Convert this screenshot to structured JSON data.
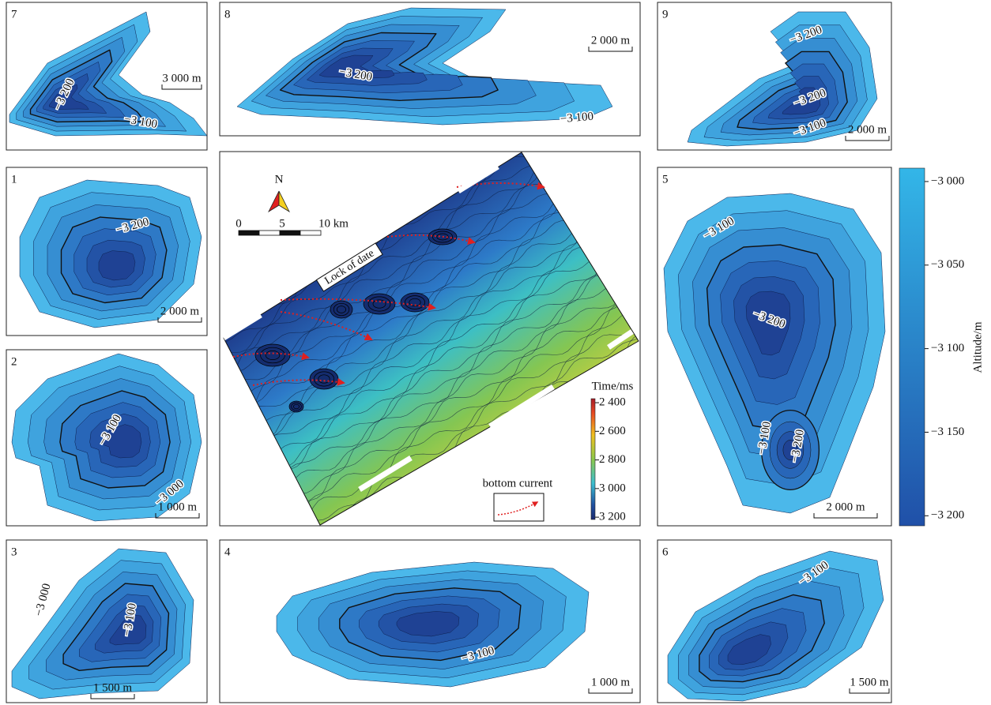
{
  "panels": [
    {
      "id": "7",
      "scale": "3 000 m",
      "labels": [
        "−3 200",
        "−3 100"
      ]
    },
    {
      "id": "8",
      "scale": "2 000 m",
      "labels": [
        "−3 200",
        "−3 100"
      ]
    },
    {
      "id": "9",
      "scale": "2 000 m",
      "labels": [
        "−3 200",
        "−3 200",
        "−3 100"
      ]
    },
    {
      "id": "1",
      "scale": "2 000 m",
      "labels": [
        "−3 200"
      ]
    },
    {
      "id": "2",
      "scale": "1 000 m",
      "labels": [
        "−3 100",
        "−3 000"
      ]
    },
    {
      "id": "3",
      "scale": "1 500 m",
      "labels": [
        "−3 000",
        "−3 100"
      ]
    },
    {
      "id": "5",
      "scale": "2 000 m",
      "labels": [
        "−3 100",
        "−3 200",
        "−3 100",
        "−3 200"
      ]
    },
    {
      "id": "4",
      "scale": "1 000 m",
      "labels": [
        "−3 100"
      ]
    },
    {
      "id": "6",
      "scale": "1 500 m",
      "labels": [
        "−3 100"
      ]
    }
  ],
  "center": {
    "north": "N",
    "scalebar": [
      "0",
      "5",
      "10 km"
    ],
    "annotation": "Lock of date",
    "legend": "bottom current",
    "colorbar": {
      "title": "Time/ms",
      "lim": [
        2372,
        3216
      ],
      "ticks": [
        {
          "value": 2400,
          "label": "2 400"
        },
        {
          "value": 2600,
          "label": "2 600"
        },
        {
          "value": 2800,
          "label": "2 800"
        },
        {
          "value": 3000,
          "label": "3 000"
        },
        {
          "value": 3200,
          "label": "3 200"
        }
      ]
    }
  },
  "colorbar": {
    "title": "Altitude/m",
    "lim": [
      -2992,
      -3206
    ],
    "ticks": [
      {
        "value": -3000,
        "label": "−3 000"
      },
      {
        "value": -3050,
        "label": "−3 050"
      },
      {
        "value": -3100,
        "label": "−3 100"
      },
      {
        "value": -3150,
        "label": "−3 150"
      },
      {
        "value": -3200,
        "label": "−3 200"
      }
    ]
  }
}
